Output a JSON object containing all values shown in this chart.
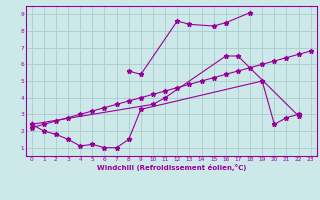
{
  "xlabel": "Windchill (Refroidissement éolien,°C)",
  "background_color": "#cce8e8",
  "grid_color": "#aacccc",
  "line_color": "#990099",
  "spine_color": "#990099",
  "xlim": [
    -0.5,
    23.5
  ],
  "ylim": [
    0.5,
    9.5
  ],
  "xticks": [
    0,
    1,
    2,
    3,
    4,
    5,
    6,
    7,
    8,
    9,
    10,
    11,
    12,
    13,
    14,
    15,
    16,
    17,
    18,
    19,
    20,
    21,
    22,
    23
  ],
  "yticks": [
    1,
    2,
    3,
    4,
    5,
    6,
    7,
    8,
    9
  ],
  "series": [
    {
      "x": [
        0,
        1,
        2,
        3,
        4,
        5,
        6,
        7,
        8,
        9,
        19,
        20,
        21,
        22
      ],
      "y": [
        2.4,
        2.0,
        1.8,
        1.5,
        1.1,
        1.2,
        1.0,
        1.0,
        1.5,
        3.3,
        5.0,
        2.4,
        2.8,
        3.0
      ]
    },
    {
      "x": [
        8,
        9,
        12,
        13,
        15,
        16,
        18
      ],
      "y": [
        5.6,
        5.4,
        8.6,
        8.4,
        8.3,
        8.5,
        9.1
      ]
    },
    {
      "x": [
        0,
        10,
        11,
        16,
        17,
        22
      ],
      "y": [
        2.4,
        3.6,
        4.0,
        6.5,
        6.5,
        2.9
      ]
    },
    {
      "x": [
        0,
        1,
        2,
        3,
        4,
        5,
        6,
        7,
        8,
        9,
        10,
        11,
        12,
        13,
        14,
        15,
        16,
        17,
        18,
        19,
        20,
        21,
        22,
        23
      ],
      "y": [
        2.2,
        2.4,
        2.6,
        2.8,
        3.0,
        3.2,
        3.4,
        3.6,
        3.8,
        4.0,
        4.2,
        4.4,
        4.6,
        4.8,
        5.0,
        5.2,
        5.4,
        5.6,
        5.8,
        6.0,
        6.2,
        6.4,
        6.6,
        6.8
      ]
    }
  ]
}
